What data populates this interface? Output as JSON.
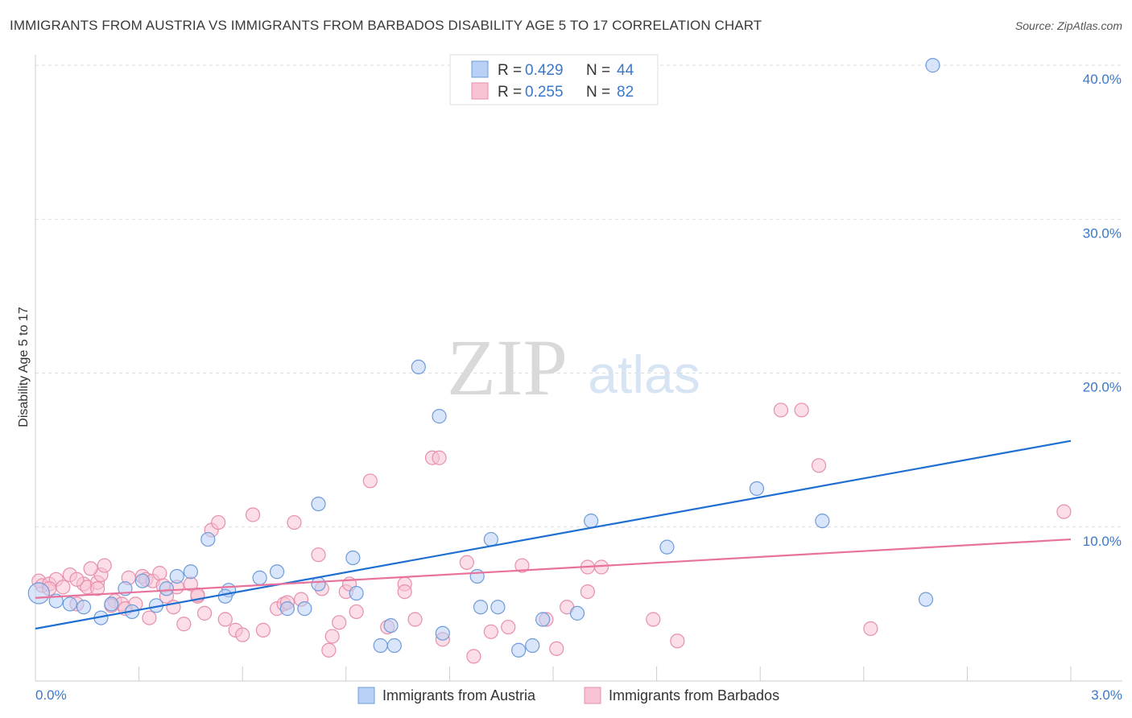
{
  "title": "IMMIGRANTS FROM AUSTRIA VS IMMIGRANTS FROM BARBADOS DISABILITY AGE 5 TO 17 CORRELATION CHART",
  "source": "Source: ZipAtlas.com",
  "watermark": {
    "zip": "ZIP",
    "atlas": "atlas"
  },
  "colors": {
    "austria_fill": "#b8d0f5",
    "austria_stroke": "#6f9bd9",
    "austria_line": "#1f6fd1",
    "barbados_fill": "#f8c3d3",
    "barbados_stroke": "#e78fab",
    "barbados_line": "#e8729b",
    "tick_label": "#3a78c9",
    "grid": "#dddddd"
  },
  "legend_box": {
    "rows": [
      {
        "r_label": "R =",
        "r_value": "0.429",
        "n_label": "N =",
        "n_value": "44"
      },
      {
        "r_label": "R =",
        "r_value": "0.255",
        "n_label": "N =",
        "n_value": "82"
      }
    ]
  },
  "chart_data": {
    "type": "scatter",
    "title": "IMMIGRANTS FROM AUSTRIA VS IMMIGRANTS FROM BARBADOS DISABILITY AGE 5 TO 17 CORRELATION CHART",
    "xlabel": "",
    "ylabel": "Disability Age 5 to 17",
    "xlim": [
      0,
      3.0
    ],
    "ylim": [
      0,
      41
    ],
    "x_tick_labels": [
      "0.0%",
      "3.0%"
    ],
    "y_ticks": [
      10,
      20,
      30,
      40
    ],
    "y_tick_labels": [
      "10.0%",
      "20.0%",
      "30.0%",
      "40.0%"
    ],
    "grid": true,
    "legend_position": "bottom-center",
    "series": [
      {
        "name": "Immigrants from Austria",
        "r": 0.429,
        "n": 44,
        "trend": [
          [
            0.0,
            3.4
          ],
          [
            3.0,
            15.6
          ]
        ],
        "points": [
          [
            0.01,
            5.7
          ],
          [
            0.06,
            5.2
          ],
          [
            0.1,
            5.0
          ],
          [
            0.14,
            4.8
          ],
          [
            0.19,
            4.1
          ],
          [
            0.22,
            5.0
          ],
          [
            0.26,
            6.0
          ],
          [
            0.28,
            4.5
          ],
          [
            0.31,
            6.5
          ],
          [
            0.35,
            4.9
          ],
          [
            0.41,
            6.8
          ],
          [
            0.45,
            7.1
          ],
          [
            0.56,
            5.9
          ],
          [
            0.65,
            6.7
          ],
          [
            0.73,
            4.7
          ],
          [
            0.78,
            4.7
          ],
          [
            0.55,
            5.5
          ],
          [
            0.7,
            7.1
          ],
          [
            0.82,
            6.3
          ],
          [
            0.93,
            5.7
          ],
          [
            0.5,
            9.2
          ],
          [
            0.82,
            11.5
          ],
          [
            0.92,
            8.0
          ],
          [
            1.0,
            2.3
          ],
          [
            1.03,
            3.6
          ],
          [
            1.04,
            2.3
          ],
          [
            1.11,
            20.4
          ],
          [
            1.17,
            17.2
          ],
          [
            1.18,
            3.1
          ],
          [
            1.28,
            6.8
          ],
          [
            1.29,
            4.8
          ],
          [
            1.32,
            9.2
          ],
          [
            1.34,
            4.8
          ],
          [
            1.4,
            2.0
          ],
          [
            1.44,
            2.3
          ],
          [
            1.47,
            4.0
          ],
          [
            1.57,
            4.4
          ],
          [
            1.61,
            10.4
          ],
          [
            1.83,
            8.7
          ],
          [
            2.09,
            12.5
          ],
          [
            2.28,
            10.4
          ],
          [
            2.6,
            40.0
          ],
          [
            2.58,
            5.3
          ],
          [
            0.38,
            6.0
          ]
        ]
      },
      {
        "name": "Immigrants from Barbados",
        "r": 0.255,
        "n": 82,
        "trend": [
          [
            0.0,
            5.4
          ],
          [
            3.0,
            9.2
          ]
        ],
        "points": [
          [
            0.01,
            6.5
          ],
          [
            0.02,
            6.2
          ],
          [
            0.04,
            6.3
          ],
          [
            0.06,
            6.6
          ],
          [
            0.08,
            6.1
          ],
          [
            0.1,
            6.9
          ],
          [
            0.12,
            5.0
          ],
          [
            0.14,
            6.3
          ],
          [
            0.15,
            6.1
          ],
          [
            0.18,
            6.4
          ],
          [
            0.19,
            6.9
          ],
          [
            0.2,
            7.5
          ],
          [
            0.23,
            5.2
          ],
          [
            0.25,
            5.0
          ],
          [
            0.27,
            6.7
          ],
          [
            0.29,
            5.0
          ],
          [
            0.31,
            6.8
          ],
          [
            0.32,
            6.6
          ],
          [
            0.34,
            6.5
          ],
          [
            0.36,
            7.0
          ],
          [
            0.37,
            6.2
          ],
          [
            0.38,
            5.5
          ],
          [
            0.4,
            4.8
          ],
          [
            0.41,
            6.1
          ],
          [
            0.43,
            3.7
          ],
          [
            0.45,
            6.3
          ],
          [
            0.47,
            5.5
          ],
          [
            0.49,
            4.4
          ],
          [
            0.51,
            9.8
          ],
          [
            0.53,
            10.3
          ],
          [
            0.58,
            3.3
          ],
          [
            0.6,
            3.0
          ],
          [
            0.63,
            10.8
          ],
          [
            0.7,
            4.7
          ],
          [
            0.72,
            5.0
          ],
          [
            0.75,
            10.3
          ],
          [
            0.77,
            5.3
          ],
          [
            0.82,
            8.2
          ],
          [
            0.85,
            2.0
          ],
          [
            0.86,
            2.9
          ],
          [
            0.88,
            3.8
          ],
          [
            0.9,
            5.8
          ],
          [
            0.91,
            6.3
          ],
          [
            0.93,
            4.5
          ],
          [
            0.97,
            13.0
          ],
          [
            1.02,
            3.5
          ],
          [
            1.07,
            6.3
          ],
          [
            1.07,
            5.8
          ],
          [
            1.1,
            4.0
          ],
          [
            1.15,
            14.5
          ],
          [
            1.17,
            14.5
          ],
          [
            1.18,
            2.7
          ],
          [
            1.25,
            7.7
          ],
          [
            1.27,
            1.6
          ],
          [
            1.32,
            3.2
          ],
          [
            1.37,
            3.5
          ],
          [
            1.41,
            7.5
          ],
          [
            1.48,
            4.0
          ],
          [
            1.51,
            2.1
          ],
          [
            1.54,
            4.8
          ],
          [
            1.6,
            5.8
          ],
          [
            1.6,
            7.4
          ],
          [
            1.64,
            7.4
          ],
          [
            1.79,
            4.0
          ],
          [
            1.86,
            2.6
          ],
          [
            2.16,
            17.6
          ],
          [
            2.22,
            17.6
          ],
          [
            2.27,
            14.0
          ],
          [
            2.42,
            3.4
          ],
          [
            2.98,
            11.0
          ],
          [
            0.12,
            6.6
          ],
          [
            0.04,
            6.0
          ],
          [
            0.18,
            6.0
          ],
          [
            0.26,
            4.7
          ],
          [
            0.33,
            4.1
          ],
          [
            0.47,
            5.6
          ],
          [
            0.55,
            4.0
          ],
          [
            0.66,
            3.3
          ],
          [
            0.73,
            5.1
          ],
          [
            0.83,
            6.0
          ],
          [
            0.16,
            7.3
          ],
          [
            0.22,
            4.9
          ]
        ]
      }
    ]
  }
}
